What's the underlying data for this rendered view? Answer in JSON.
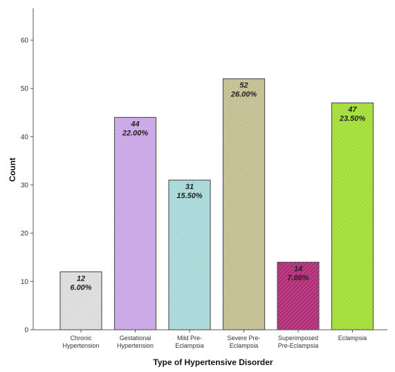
{
  "chart_data": {
    "type": "bar",
    "categories": [
      [
        "Chronic",
        "Hypertension"
      ],
      [
        "Gestational",
        "Hypertension"
      ],
      [
        "Mild Pre-",
        "Eclampsia"
      ],
      [
        "Severe Pre-",
        "Eclampsia"
      ],
      [
        "Superimposed",
        "Pre-Eclampsia"
      ],
      [
        "Eclampsia"
      ]
    ],
    "values": [
      12,
      44,
      31,
      52,
      14,
      47
    ],
    "percent_labels": [
      "6.00%",
      "22.00%",
      "15.50%",
      "26.00%",
      "7.00%",
      "23.50%"
    ],
    "colors": [
      "#dcdcdc",
      "#c9a6e6",
      "#a8d8d8",
      "#c4be93",
      "#b02d78",
      "#a3de38"
    ],
    "bar_outline_color": "#555555",
    "xlabel": "Type of Hypertensive Disorder",
    "ylabel": "Count",
    "ylim": [
      0,
      65
    ],
    "yticks": [
      0,
      10,
      20,
      30,
      40,
      50,
      60
    ],
    "grid": false
  }
}
